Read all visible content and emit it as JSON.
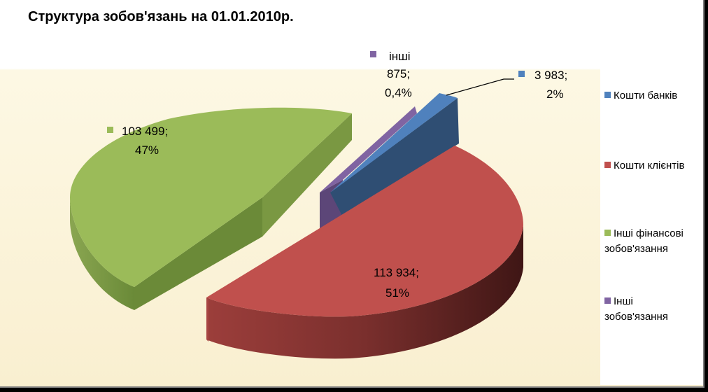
{
  "chart_data": {
    "type": "pie",
    "title": "Структура зобов'язань на 01.01.2010р.",
    "three_d": true,
    "exploded": true,
    "legend_position": "right",
    "slices": [
      {
        "name": "Кошти банків",
        "value": 3983,
        "percent_label": "2%",
        "value_label": "3 983;",
        "color": "#4f81bd"
      },
      {
        "name": "Кошти клієнтів",
        "value": 113934,
        "percent_label": "51%",
        "value_label": "113 934;",
        "color": "#c0504d"
      },
      {
        "name": "Інші фінансові зобов'язання",
        "value": 103499,
        "percent_label": "47%",
        "value_label": "103 499;",
        "color": "#9bbb59"
      },
      {
        "name": "Інші зобов'язання",
        "value": 875,
        "percent_label": "0,4%",
        "value_label": "875;",
        "short_label": "інші",
        "color": "#8064a2"
      }
    ]
  },
  "legend": {
    "items": [
      {
        "lines": [
          "Кошти банків"
        ]
      },
      {
        "lines": [
          "Кошти клієнтів"
        ]
      },
      {
        "lines": [
          "Інші фінансові",
          "зобов'язання"
        ]
      },
      {
        "lines": [
          "Інші",
          "зобов'язання"
        ]
      }
    ]
  }
}
